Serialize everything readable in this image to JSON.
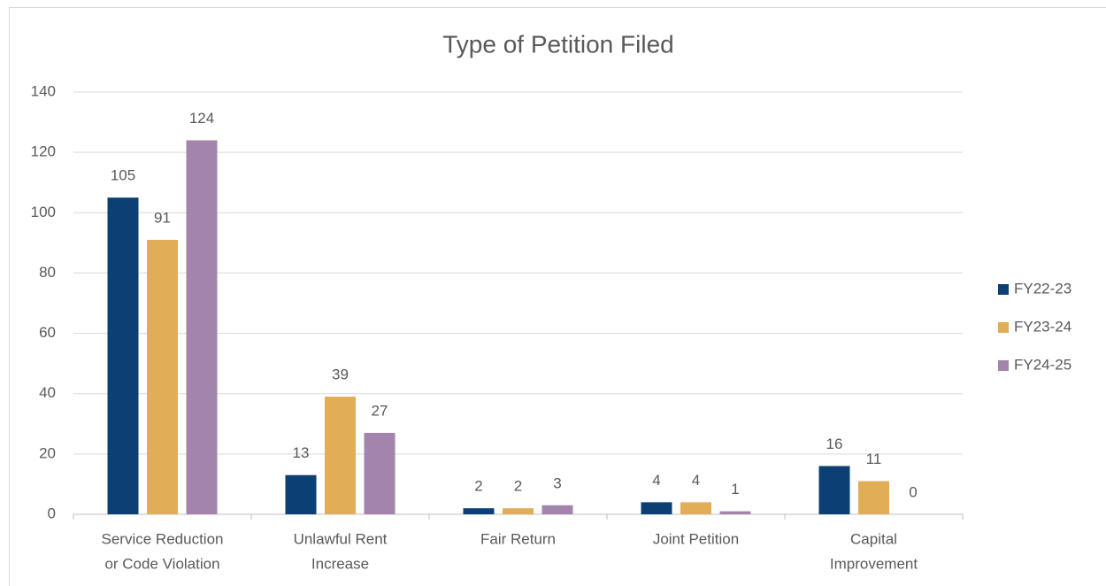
{
  "chart_data": {
    "type": "bar",
    "title": "Type of Petition Filed",
    "categories": [
      [
        "Service Reduction",
        "or Code Violation"
      ],
      [
        "Unlawful Rent",
        "Increase"
      ],
      [
        "Fair Return"
      ],
      [
        "Joint Petition"
      ],
      [
        "Capital",
        "Improvement"
      ]
    ],
    "series": [
      {
        "name": "FY22-23",
        "color": "#0c3f73",
        "values": [
          105,
          13,
          2,
          4,
          16
        ]
      },
      {
        "name": "FY23-24",
        "color": "#e1ad57",
        "values": [
          91,
          39,
          2,
          4,
          11
        ]
      },
      {
        "name": "FY24-25",
        "color": "#a384ad",
        "values": [
          124,
          27,
          3,
          1,
          0
        ]
      }
    ],
    "ylim": [
      0,
      140
    ],
    "yticks": [
      0,
      20,
      40,
      60,
      80,
      100,
      120,
      140
    ],
    "grid": true,
    "legend": "right"
  }
}
